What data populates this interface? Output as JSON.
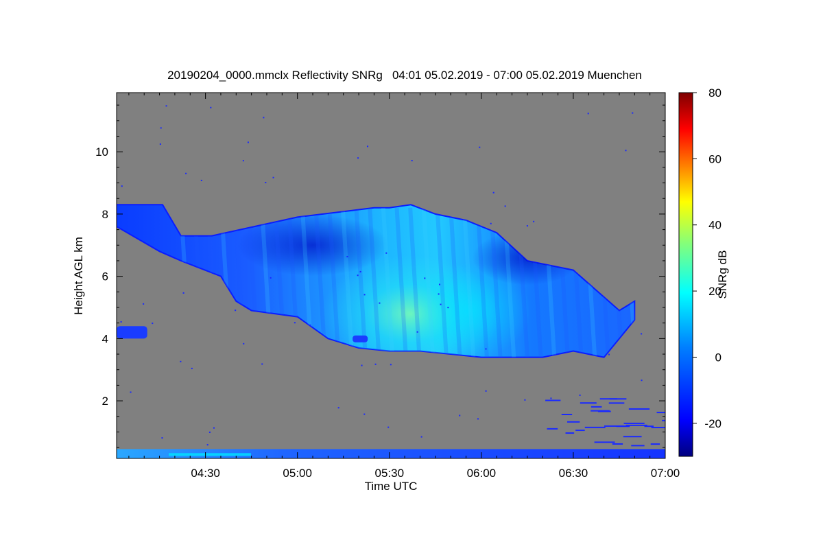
{
  "chart_data": {
    "type": "heatmap",
    "title": "20190204_0000.mmclx Reflectivity SNRg   04:01 05.02.2019 - 07:00 05.02.2019 Muenchen",
    "xlabel": "Time UTC",
    "ylabel": "Height AGL km",
    "x_ticks": [
      "04:30",
      "05:00",
      "05:30",
      "06:00",
      "06:30",
      "07:00"
    ],
    "x_tick_minutes": [
      270,
      300,
      330,
      360,
      390,
      420
    ],
    "xlim_minutes": [
      241,
      420
    ],
    "y_ticks": [
      2,
      4,
      6,
      8,
      10
    ],
    "ylim": [
      0.15,
      11.9
    ],
    "colorbar": {
      "label": "SNRg dB",
      "ticks": [
        -20,
        0,
        20,
        40,
        60,
        80
      ],
      "range": [
        -30,
        80
      ],
      "colormap": [
        "#00007f",
        "#0000ff",
        "#007fff",
        "#00ffff",
        "#7fff7f",
        "#ffff00",
        "#ff7f00",
        "#ff0000",
        "#7f0000"
      ]
    },
    "background_color": "#808080",
    "cloud_layer": {
      "top_km": [
        [
          241,
          8.3
        ],
        [
          256,
          8.3
        ],
        [
          262,
          7.3
        ],
        [
          272,
          7.3
        ],
        [
          300,
          7.9
        ],
        [
          325,
          8.2
        ],
        [
          330,
          8.2
        ],
        [
          337,
          8.3
        ],
        [
          345,
          8.0
        ],
        [
          355,
          7.8
        ],
        [
          365,
          7.4
        ],
        [
          375,
          6.5
        ],
        [
          390,
          6.2
        ],
        [
          405,
          4.9
        ],
        [
          410,
          5.2
        ]
      ],
      "base_km": [
        [
          241,
          7.6
        ],
        [
          255,
          6.8
        ],
        [
          262,
          6.5
        ],
        [
          275,
          6.0
        ],
        [
          280,
          5.2
        ],
        [
          285,
          4.9
        ],
        [
          300,
          4.7
        ],
        [
          310,
          4.0
        ],
        [
          320,
          3.7
        ],
        [
          330,
          3.6
        ],
        [
          340,
          3.6
        ],
        [
          360,
          3.4
        ],
        [
          380,
          3.4
        ],
        [
          390,
          3.6
        ],
        [
          400,
          3.4
        ]
      ],
      "peak_snr_db": 15
    },
    "low_echo": {
      "time_minutes": [
        241,
        251
      ],
      "height_km": [
        4.0,
        4.4
      ]
    },
    "ground_clutter_km": [
      0.15,
      0.45
    ]
  }
}
